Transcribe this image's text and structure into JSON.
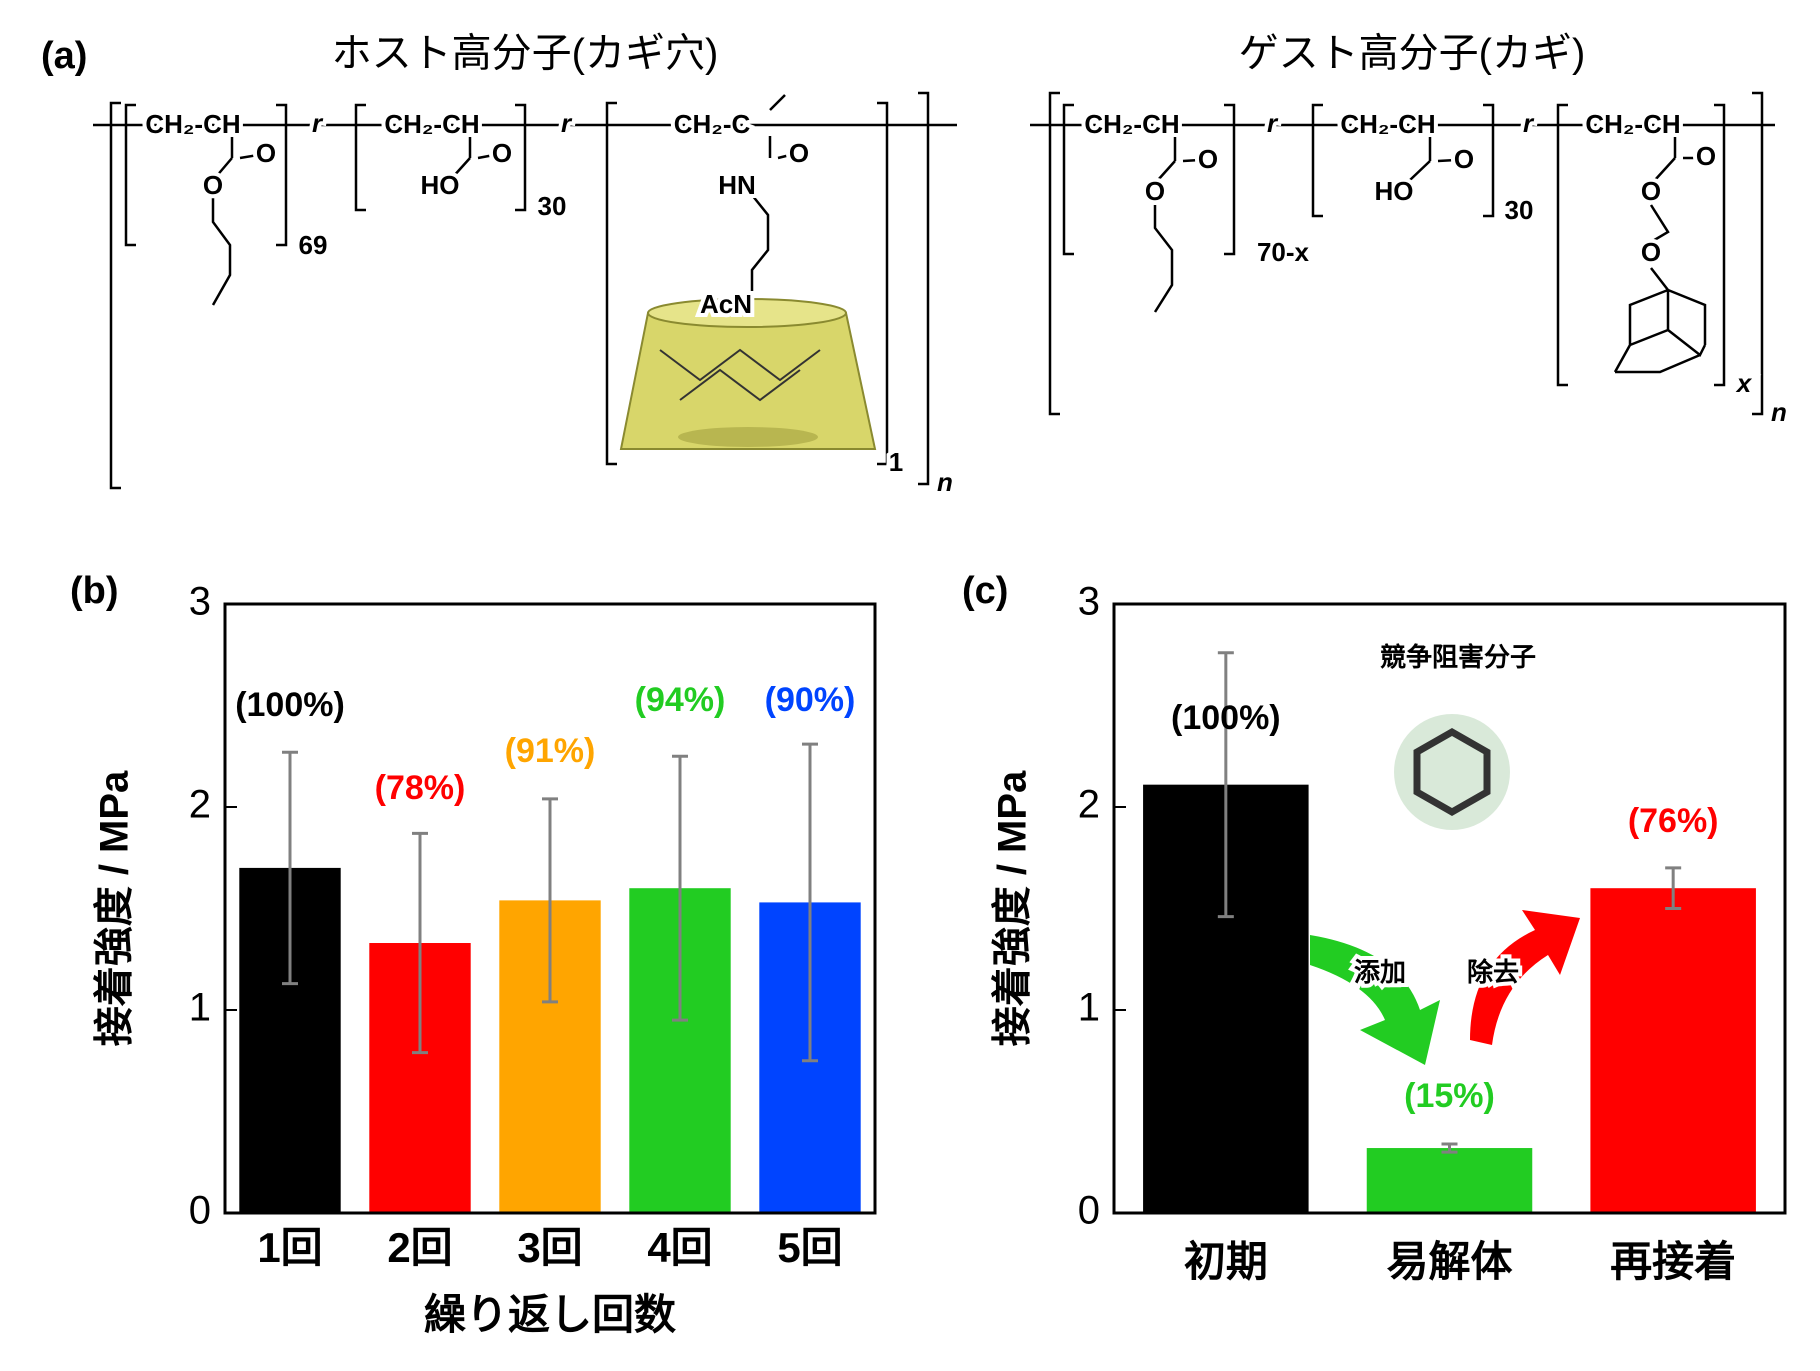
{
  "panel_a": {
    "label": "(a)",
    "host_title": "ホスト高分子(カギ穴)",
    "guest_title": "ゲスト高分子(カギ)",
    "host_fragments": [
      "CH₂-CH",
      "O",
      "O",
      "69",
      "r",
      "CH₂-CH",
      "O",
      "HO",
      "30",
      "r",
      "CH₂-C",
      "O",
      "HN",
      "AcN",
      "1",
      "n"
    ],
    "guest_fragments": [
      "CH₂-CH",
      "O",
      "O",
      "70-x",
      "r",
      "CH₂-CH",
      "O",
      "HO",
      "30",
      "r",
      "CH₂-CH",
      "O",
      "O",
      "O",
      "x",
      "n"
    ]
  },
  "chart_data": [
    {
      "type": "bar",
      "panel_label": "(b)",
      "ylabel": "接着強度 / MPa",
      "xlabel": "繰り返し回数",
      "categories": [
        "1回",
        "2回",
        "3回",
        "4回",
        "5回"
      ],
      "values": [
        1.7,
        1.33,
        1.54,
        1.6,
        1.53
      ],
      "errors": [
        0.57,
        0.54,
        0.5,
        0.65,
        0.78
      ],
      "colors": [
        "#000000",
        "#ff0000",
        "#ffa500",
        "#22cc22",
        "#0044ff"
      ],
      "annotations": [
        "(100%)",
        "(78%)",
        "(91%)",
        "(94%)",
        "(90%)"
      ],
      "annotation_colors": [
        "#000000",
        "#ff0000",
        "#ffa500",
        "#22cc22",
        "#0044ff"
      ],
      "error_color": "#808080",
      "ylim": [
        0,
        3
      ],
      "yticks": [
        0,
        1,
        2,
        3
      ]
    },
    {
      "type": "bar",
      "panel_label": "(c)",
      "ylabel": "接着強度 / MPa",
      "categories": [
        "初期",
        "易解体",
        "再接着"
      ],
      "values": [
        2.11,
        0.32,
        1.6
      ],
      "errors": [
        0.65,
        0.02,
        0.1
      ],
      "colors": [
        "#000000",
        "#22cc22",
        "#ff0000"
      ],
      "annotations": [
        "(100%)",
        "(15%)",
        "(76%)"
      ],
      "annotation_colors": [
        "#000000",
        "#22cc22",
        "#ff0000"
      ],
      "texts": [
        "競争阻害分子",
        "添加",
        "除去"
      ],
      "error_color": "#808080",
      "ylim": [
        0,
        3
      ],
      "yticks": [
        0,
        1,
        2,
        3
      ]
    }
  ]
}
